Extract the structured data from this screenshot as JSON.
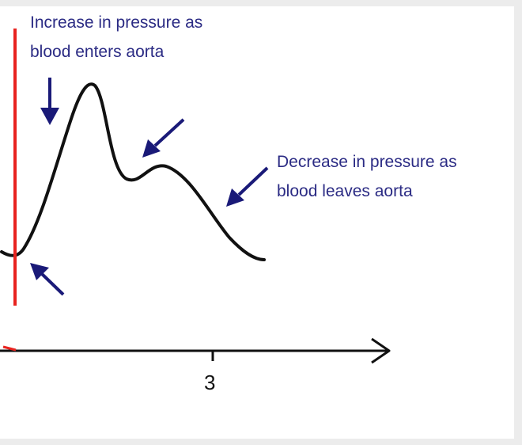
{
  "annotations": {
    "increase_line1": "Increase in pressure as",
    "increase_line2": "blood enters aorta",
    "decrease_line1": "Decrease in pressure as",
    "decrease_line2": "blood leaves aorta"
  },
  "axis": {
    "tick_label": "3"
  },
  "colors": {
    "curve": "#111111",
    "marker_line": "#e8231f",
    "arrows": "#1a1a78",
    "annotation_text": "#2b2b84",
    "axis": "#111111"
  },
  "icons": [
    "arrow-down-icon",
    "arrow-down-left-icon",
    "arrow-up-left-icon"
  ]
}
